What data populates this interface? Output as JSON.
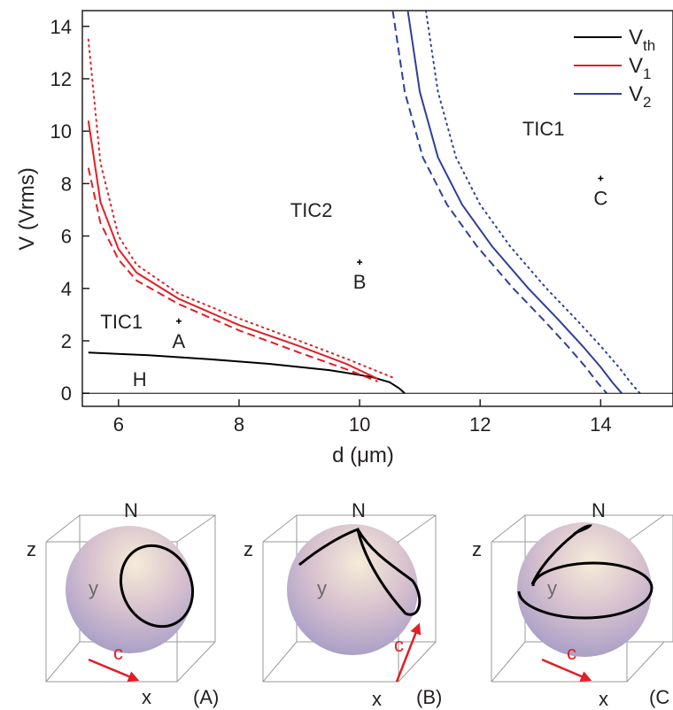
{
  "chart_data": [
    {
      "type": "line",
      "xlabel": "d (μm)",
      "ylabel": "V (Vrms)",
      "xlim": [
        5.4,
        15.2
      ],
      "ylim": [
        -0.5,
        14.6
      ],
      "x_ticks": [
        6,
        8,
        10,
        12,
        14
      ],
      "y_ticks": [
        0,
        2,
        4,
        6,
        8,
        10,
        12,
        14
      ],
      "grid": false,
      "legend_position": "top-right",
      "legend": [
        {
          "label": "V",
          "sub": "th",
          "color": "#000000"
        },
        {
          "label": "V",
          "sub": "1",
          "color": "#e31e24"
        },
        {
          "label": "V",
          "sub": "2",
          "color": "#2e3f98"
        }
      ],
      "series": [
        {
          "name": "Vth",
          "color": "#000000",
          "style": "solid",
          "x": [
            5.5,
            6.5,
            7.5,
            8.5,
            9.5,
            10.2,
            10.5,
            10.65,
            10.75
          ],
          "y": [
            1.55,
            1.45,
            1.3,
            1.12,
            0.88,
            0.62,
            0.42,
            0.2,
            0.0
          ]
        },
        {
          "name": "V1",
          "color": "#e31e24",
          "style": "solid",
          "x": [
            5.5,
            5.7,
            6.0,
            6.3,
            7.0,
            8.0,
            9.0,
            9.8,
            10.3
          ],
          "y": [
            10.4,
            7.3,
            5.5,
            4.6,
            3.6,
            2.6,
            1.8,
            1.1,
            0.55
          ]
        },
        {
          "name": "V1",
          "color": "#e31e24",
          "style": "dashed",
          "x": [
            5.5,
            5.7,
            6.0,
            6.3,
            7.0,
            8.0,
            9.0,
            9.8,
            10.3
          ],
          "y": [
            8.6,
            6.5,
            5.1,
            4.3,
            3.4,
            2.4,
            1.55,
            0.9,
            0.45
          ]
        },
        {
          "name": "V1",
          "color": "#e31e24",
          "style": "dotted",
          "x": [
            5.5,
            5.7,
            6.0,
            6.3,
            7.0,
            8.0,
            9.0,
            9.8,
            10.55
          ],
          "y": [
            13.5,
            8.8,
            6.0,
            4.9,
            3.8,
            2.85,
            2.0,
            1.3,
            0.6
          ]
        },
        {
          "name": "V2",
          "color": "#2e3f98",
          "style": "solid",
          "x": [
            10.8,
            11.0,
            11.3,
            11.7,
            12.2,
            12.8,
            13.3,
            13.7,
            14.0,
            14.2,
            14.35
          ],
          "y": [
            14.6,
            11.5,
            9.0,
            7.2,
            5.6,
            4.0,
            2.8,
            1.8,
            1.0,
            0.4,
            0.0
          ]
        },
        {
          "name": "V2",
          "color": "#2e3f98",
          "style": "dashed",
          "x": [
            10.55,
            10.75,
            11.05,
            11.45,
            11.95,
            12.55,
            13.05,
            13.45,
            13.75,
            13.95,
            14.1
          ],
          "y": [
            14.6,
            11.5,
            9.0,
            7.2,
            5.6,
            4.0,
            2.8,
            1.8,
            1.0,
            0.4,
            0.0
          ]
        },
        {
          "name": "V2",
          "color": "#2e3f98",
          "style": "dotted",
          "x": [
            11.1,
            11.3,
            11.6,
            12.0,
            12.5,
            13.1,
            13.6,
            14.0,
            14.3,
            14.5,
            14.65
          ],
          "y": [
            14.6,
            11.5,
            9.0,
            7.2,
            5.6,
            4.0,
            2.8,
            1.8,
            1.0,
            0.4,
            0.0
          ]
        },
        {
          "name": "",
          "color": "#000000",
          "style": "thin",
          "x": [
            5.4,
            15.2
          ],
          "y": [
            0,
            0
          ]
        }
      ],
      "points": [
        {
          "label": "A",
          "x": 7.0,
          "y": 2.75
        },
        {
          "label": "B",
          "x": 10.0,
          "y": 5.0
        },
        {
          "label": "C",
          "x": 14.0,
          "y": 8.2
        }
      ],
      "regions": [
        {
          "label": "TIC1",
          "x": 6.05,
          "y": 2.75
        },
        {
          "label": "TIC2",
          "x": 9.2,
          "y": 7.0
        },
        {
          "label": "TIC1",
          "x": 13.05,
          "y": 10.1
        },
        {
          "label": "H",
          "x": 6.35,
          "y": 0.55
        }
      ]
    },
    {
      "type": "diagram",
      "panels": [
        {
          "label": "(A)",
          "axes": {
            "z": "z",
            "y": "y",
            "x": "x"
          },
          "pole": "N",
          "arrow": "c"
        },
        {
          "label": "(B)",
          "axes": {
            "z": "z",
            "y": "y",
            "x": "x"
          },
          "pole": "N",
          "arrow": "c"
        },
        {
          "label": "(C",
          "axes": {
            "z": "z",
            "y": "y",
            "x": "x"
          },
          "pole": "N",
          "arrow": "c"
        }
      ]
    }
  ]
}
